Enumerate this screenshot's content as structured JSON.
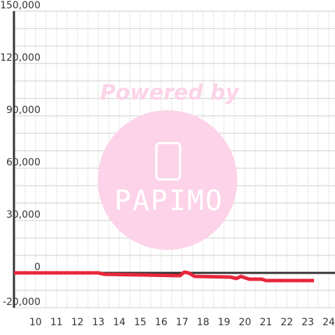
{
  "chart_data": {
    "type": "line",
    "watermark": [
      "Powered by",
      "PAPIMO"
    ],
    "xlim": [
      8.97,
      24.3
    ],
    "xticks": [
      10,
      11,
      12,
      13,
      14,
      15,
      16,
      17,
      18,
      19,
      20,
      21,
      22,
      23,
      24
    ],
    "ylim": [
      -20000,
      150000
    ],
    "yticks": [
      {
        "value": -20000,
        "label": "-20,000"
      },
      0,
      {
        "value": 30000,
        "label": "30,000"
      },
      {
        "value": 60000,
        "label": "60,000"
      },
      {
        "value": 90000,
        "label": "90,000"
      },
      {
        "value": 120000,
        "label": "120,000"
      },
      {
        "value": 150000,
        "label": "150,000"
      }
    ],
    "ygrid": [
      -10000,
      10000,
      20000,
      40000,
      50000,
      70000,
      80000,
      100000,
      110000,
      130000,
      140000
    ],
    "xgrid": [
      9.5,
      10.5,
      11.5,
      12.5,
      13.5,
      14.5,
      15.5,
      16.5,
      17.5,
      18.5,
      19.5,
      20.5,
      21.5,
      22.5,
      23.5
    ],
    "grid": true,
    "series": [
      {
        "color": "#e8273c",
        "x": [
          8.97,
          13.0,
          13.3,
          15.2,
          16.9,
          17.1,
          17.3,
          17.6,
          19.3,
          19.6,
          19.8,
          20.2,
          20.8,
          21.0,
          23.3
        ],
        "values": [
          0,
          0,
          -800,
          -1200,
          -1600,
          400,
          0,
          -2000,
          -2400,
          -3200,
          -2000,
          -3600,
          -3600,
          -4400,
          -4400
        ]
      }
    ]
  }
}
